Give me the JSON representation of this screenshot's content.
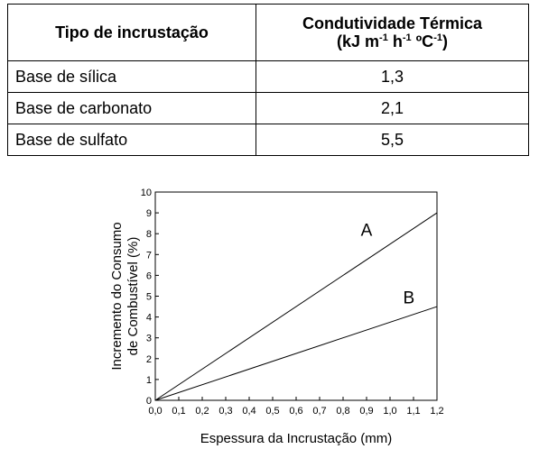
{
  "table": {
    "headers": {
      "col1": "Tipo de incrustação",
      "col2_line1": "Condutividade Térmica",
      "col2_line2": {
        "open": "(kJ m",
        "m_exp": "-1",
        "h": " h",
        "h_exp": "-1",
        "c": " ºC",
        "c_exp": "-1",
        "close": ")"
      }
    },
    "rows": [
      {
        "tipo": "Base de sílica",
        "valor": "1,3"
      },
      {
        "tipo": "Base de carbonato",
        "valor": "2,1"
      },
      {
        "tipo": "Base de sulfato",
        "valor": "5,5"
      }
    ]
  },
  "chart_data": {
    "type": "line",
    "xlabel": "Espessura da Incrustação (mm)",
    "ylabel_line1": "Incremento do Consumo",
    "ylabel_line2": "de Combustível (%)",
    "xlim": [
      0,
      1.2
    ],
    "ylim": [
      0,
      10
    ],
    "xticks": [
      "0,0",
      "0,1",
      "0,2",
      "0,3",
      "0,4",
      "0,5",
      "0,6",
      "0,7",
      "0,8",
      "0,9",
      "1,0",
      "1,1",
      "1,2"
    ],
    "yticks": [
      "0",
      "1",
      "2",
      "3",
      "4",
      "5",
      "6",
      "7",
      "8",
      "9",
      "10"
    ],
    "grid": false,
    "series": [
      {
        "name": "A",
        "x": [
          0,
          1.2
        ],
        "y": [
          0,
          9.0
        ],
        "label_at": [
          0.9,
          7.9
        ]
      },
      {
        "name": "B",
        "x": [
          0,
          1.2
        ],
        "y": [
          0,
          4.5
        ],
        "label_at": [
          1.08,
          4.65
        ]
      }
    ]
  }
}
